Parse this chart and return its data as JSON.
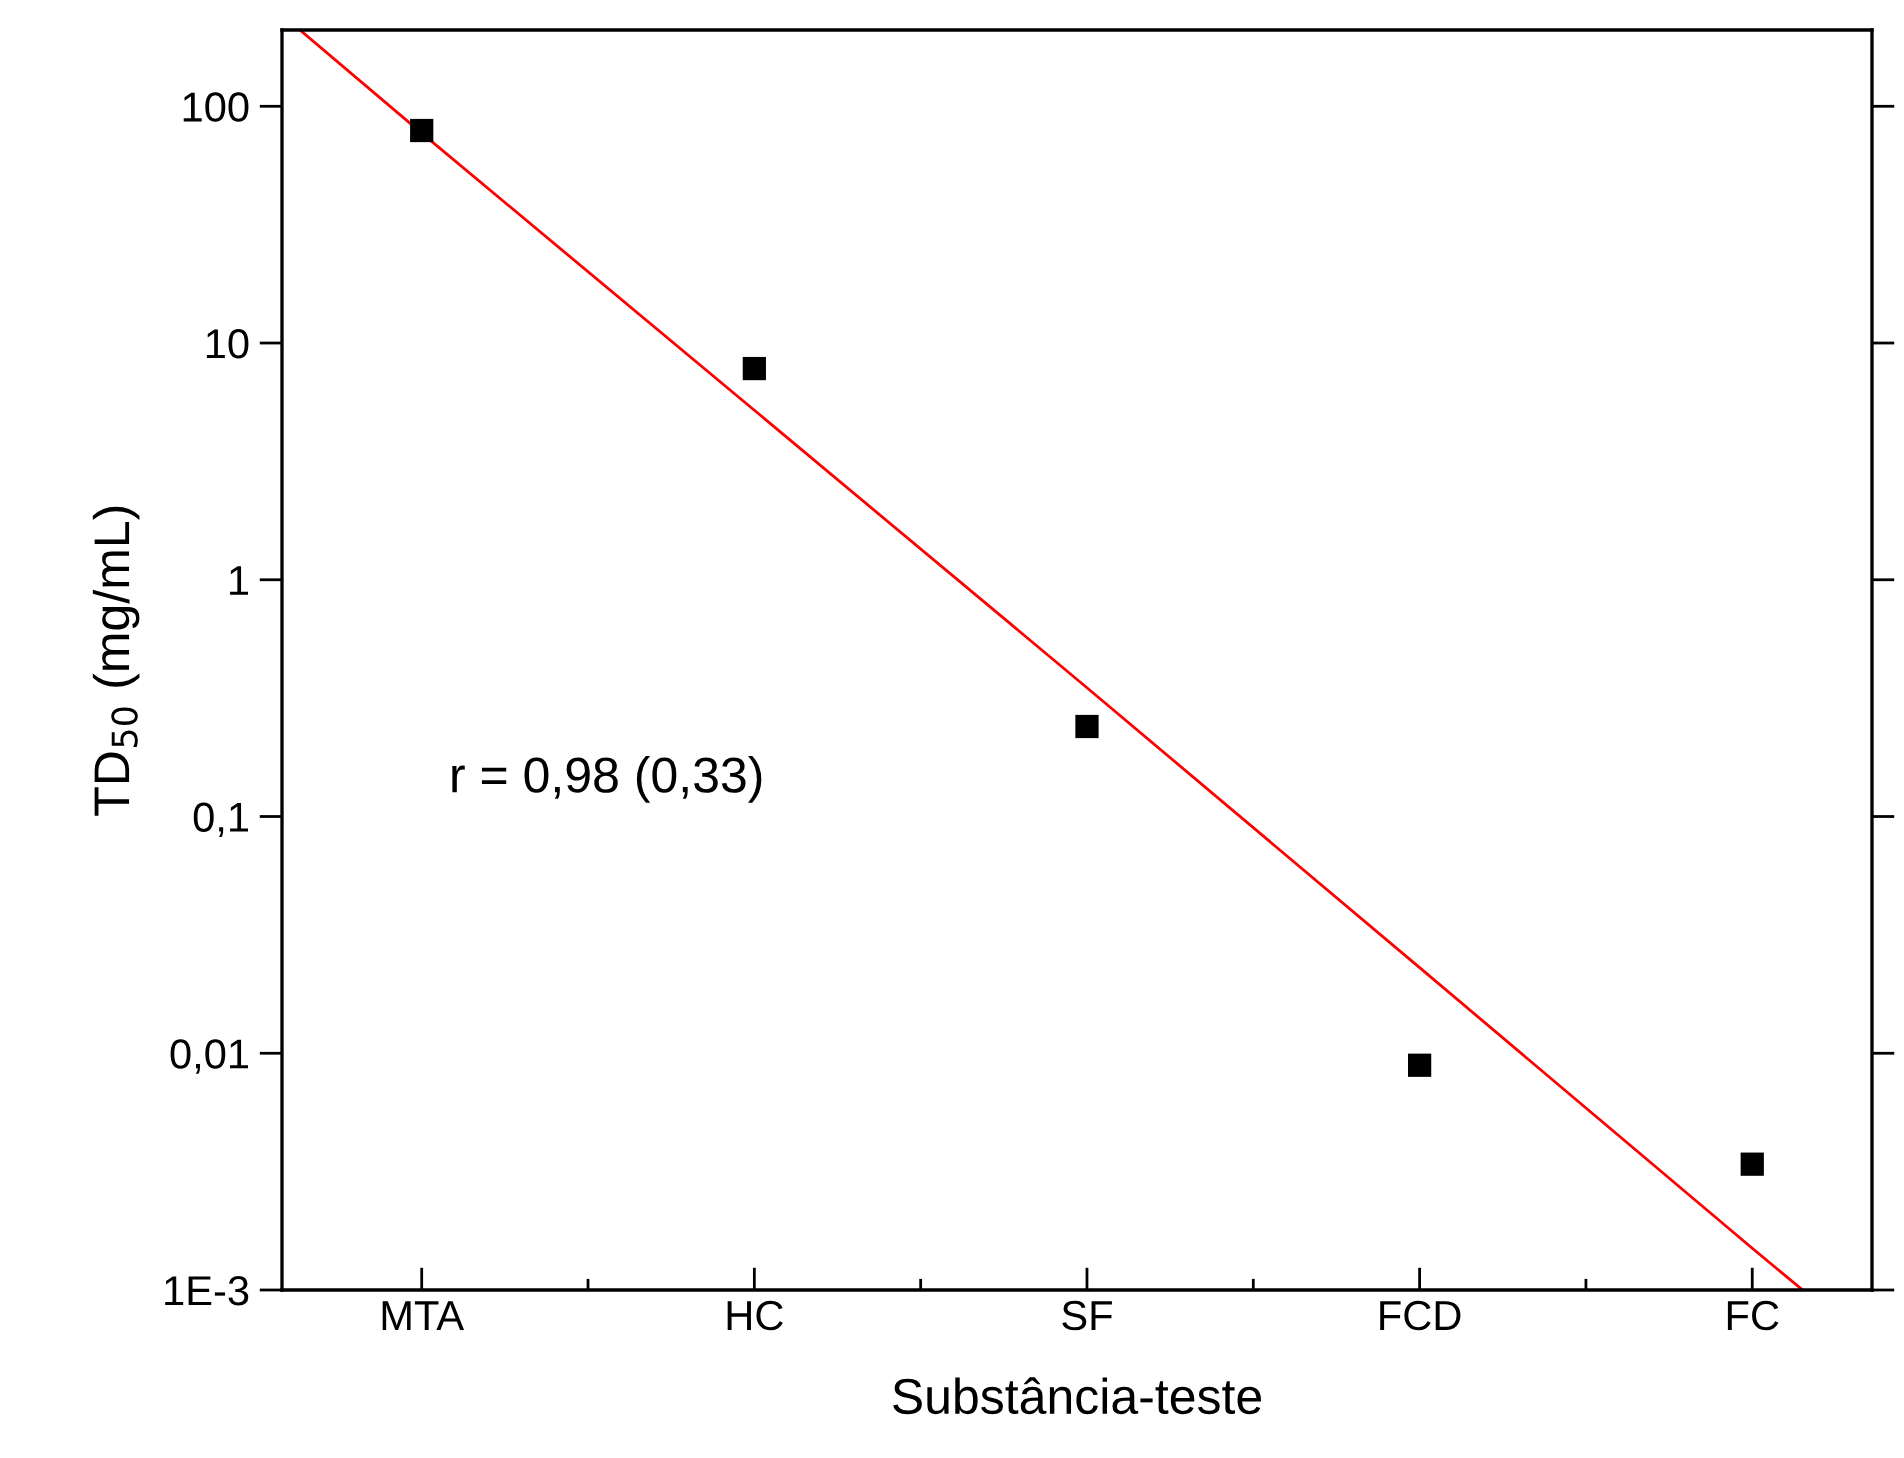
{
  "chart_data": {
    "type": "scatter",
    "xlabel": "Substância-teste",
    "ylabel": "TD$_{50}$ (mg/mL)",
    "categories": [
      "MTA",
      "HC",
      "SF",
      "FCD",
      "FC"
    ],
    "series": [
      {
        "color": "#000000",
        "marker": "square",
        "values": [
          79,
          7.8,
          0.24,
          0.0089,
          0.0034
        ]
      },
      {
        "type": "line",
        "color": "#ff0000",
        "marker": "none",
        "line_style": "solid",
        "values": [
          77,
          5.2,
          0.35,
          0.023,
          0.0015
        ]
      }
    ],
    "log": "y",
    "ylim": [
      0.001,
      210
    ],
    "yticks": [
      {
        "value": 0.001,
        "label": "1E-3"
      },
      {
        "value": 0.01,
        "label": "0,01"
      },
      {
        "value": 0.1,
        "label": "0,1"
      },
      {
        "value": 1,
        "label": "1"
      },
      {
        "value": 10,
        "label": "10"
      },
      {
        "value": 100,
        "label": "100"
      }
    ],
    "grid": false,
    "legend": false,
    "annotations": [
      "r = 0,98 (0,33)"
    ]
  }
}
